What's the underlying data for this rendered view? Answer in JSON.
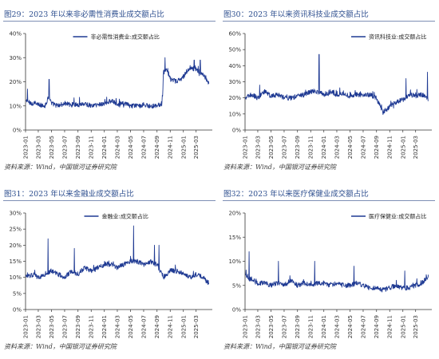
{
  "panels": [
    {
      "figure_title": "图29：2023 年以来非必需性消费业成交额占比",
      "source": "资料来源：Wind，中国银河证券研究院"
    },
    {
      "figure_title": "图30：2023 年以来资讯科技业成交额占比",
      "source": "资料来源：Wind，中国银河证券研究院"
    },
    {
      "figure_title": "图31：2023 年以来金融业成交额占比",
      "source": "资料来源：Wind，中国银河证券研究院"
    },
    {
      "figure_title": "图32：2023 年以来医疗保健业成交额占比",
      "source": "资料来源：Wind，中国银河证券研究院"
    }
  ],
  "colors": {
    "line": "#1f3a93",
    "axis": "#333333",
    "title": "#2e4f8f"
  },
  "chart_data": [
    {
      "type": "line",
      "series": [
        {
          "name": "非必需性消费业:成交额占比",
          "anchors": [
            [
              "2023-01-03",
              12
            ],
            [
              "2023-02-01",
              11
            ],
            [
              "2023-03-01",
              10.5
            ],
            [
              "2023-04-01",
              10
            ],
            [
              "2023-04-20",
              14
            ],
            [
              "2023-05-01",
              11
            ],
            [
              "2023-06-01",
              10
            ],
            [
              "2023-07-01",
              11
            ],
            [
              "2023-08-01",
              10.5
            ],
            [
              "2023-09-01",
              10.5
            ],
            [
              "2023-10-01",
              11
            ],
            [
              "2023-11-01",
              10
            ],
            [
              "2023-12-01",
              10.5
            ],
            [
              "2024-01-01",
              11
            ],
            [
              "2024-02-01",
              12
            ],
            [
              "2024-03-01",
              11
            ],
            [
              "2024-04-01",
              11
            ],
            [
              "2024-05-01",
              10
            ],
            [
              "2024-06-01",
              10
            ],
            [
              "2024-07-01",
              10.5
            ],
            [
              "2024-08-01",
              10
            ],
            [
              "2024-09-01",
              10
            ],
            [
              "2024-09-25",
              11
            ],
            [
              "2024-10-01",
              24
            ],
            [
              "2024-10-20",
              25
            ],
            [
              "2024-11-01",
              21
            ],
            [
              "2024-12-01",
              20
            ],
            [
              "2025-01-01",
              22
            ],
            [
              "2025-02-01",
              26
            ],
            [
              "2025-03-01",
              25
            ],
            [
              "2025-04-01",
              23
            ],
            [
              "2025-04-30",
              19
            ]
          ]
        }
      ],
      "spikes": [
        [
          "2023-01-10",
          17
        ],
        [
          "2023-04-20",
          21
        ],
        [
          "2024-10-08",
          30
        ],
        [
          "2025-02-20",
          29
        ],
        [
          "2025-03-20",
          29
        ]
      ],
      "x_range": [
        "2023-01-01",
        "2025-05-15"
      ],
      "x_ticks": [
        "2023-01",
        "2023-03",
        "2023-05",
        "2023-07",
        "2023-09",
        "2023-11",
        "2024-01",
        "2024-03",
        "2024-05",
        "2024-07",
        "2024-09",
        "2024-11",
        "2025-01",
        "2025-03"
      ],
      "y_ticks": [
        "0%",
        "10%",
        "20%",
        "30%",
        "40%"
      ],
      "ylim": [
        0,
        40
      ],
      "legend_position": "top-center",
      "grid": false
    },
    {
      "type": "line",
      "series": [
        {
          "name": "资讯科技业:成交额占比",
          "anchors": [
            [
              "2023-01-03",
              20
            ],
            [
              "2023-02-01",
              22
            ],
            [
              "2023-03-01",
              20
            ],
            [
              "2023-04-01",
              24
            ],
            [
              "2023-05-01",
              21
            ],
            [
              "2023-06-01",
              22
            ],
            [
              "2023-07-01",
              20
            ],
            [
              "2023-08-01",
              20
            ],
            [
              "2023-09-01",
              21
            ],
            [
              "2023-10-01",
              22
            ],
            [
              "2023-11-01",
              24
            ],
            [
              "2023-12-01",
              24
            ],
            [
              "2024-01-01",
              22
            ],
            [
              "2024-02-01",
              24
            ],
            [
              "2024-03-01",
              22
            ],
            [
              "2024-04-01",
              23
            ],
            [
              "2024-05-01",
              21
            ],
            [
              "2024-06-01",
              22
            ],
            [
              "2024-07-01",
              22
            ],
            [
              "2024-08-01",
              22
            ],
            [
              "2024-09-01",
              20
            ],
            [
              "2024-10-01",
              11
            ],
            [
              "2024-10-20",
              13
            ],
            [
              "2024-11-01",
              15
            ],
            [
              "2024-12-01",
              17
            ],
            [
              "2025-01-01",
              19
            ],
            [
              "2025-02-01",
              22
            ],
            [
              "2025-03-01",
              21
            ],
            [
              "2025-04-01",
              22
            ],
            [
              "2025-04-30",
              19
            ]
          ]
        }
      ],
      "spikes": [
        [
          "2023-03-10",
          28
        ],
        [
          "2023-12-10",
          47
        ],
        [
          "2025-01-15",
          32
        ],
        [
          "2025-04-25",
          36
        ]
      ],
      "x_range": [
        "2023-01-01",
        "2025-05-15"
      ],
      "x_ticks": [
        "2023-01",
        "2023-03",
        "2023-05",
        "2023-07",
        "2023-09",
        "2023-11",
        "2024-01",
        "2024-03",
        "2024-05",
        "2024-07",
        "2024-09",
        "2024-11",
        "2025-01",
        "2025-03"
      ],
      "y_ticks": [
        "0%",
        "10%",
        "20%",
        "30%",
        "40%",
        "50%",
        "60%"
      ],
      "ylim": [
        0,
        60
      ],
      "legend_position": "top-right",
      "grid": false
    },
    {
      "type": "line",
      "series": [
        {
          "name": "金融业:成交额占比",
          "anchors": [
            [
              "2023-01-03",
              10
            ],
            [
              "2023-02-01",
              11
            ],
            [
              "2023-03-01",
              10
            ],
            [
              "2023-04-01",
              11
            ],
            [
              "2023-05-01",
              12
            ],
            [
              "2023-06-01",
              11
            ],
            [
              "2023-07-01",
              10
            ],
            [
              "2023-08-01",
              12
            ],
            [
              "2023-09-01",
              11
            ],
            [
              "2023-10-01",
              13
            ],
            [
              "2023-11-01",
              12
            ],
            [
              "2023-12-01",
              13
            ],
            [
              "2024-01-01",
              14
            ],
            [
              "2024-02-01",
              14
            ],
            [
              "2024-03-01",
              13
            ],
            [
              "2024-04-01",
              14
            ],
            [
              "2024-05-01",
              15
            ],
            [
              "2024-06-01",
              15
            ],
            [
              "2024-07-01",
              14
            ],
            [
              "2024-08-01",
              15
            ],
            [
              "2024-09-01",
              14
            ],
            [
              "2024-10-01",
              10
            ],
            [
              "2024-11-01",
              12
            ],
            [
              "2024-12-01",
              12
            ],
            [
              "2025-01-01",
              11
            ],
            [
              "2025-02-01",
              10
            ],
            [
              "2025-03-01",
              11
            ],
            [
              "2025-04-01",
              10
            ],
            [
              "2025-04-30",
              8
            ]
          ]
        }
      ],
      "spikes": [
        [
          "2023-04-15",
          22
        ],
        [
          "2023-08-15",
          19
        ],
        [
          "2024-05-15",
          26
        ],
        [
          "2024-08-20",
          20
        ],
        [
          "2024-09-10",
          20
        ]
      ],
      "x_range": [
        "2023-01-01",
        "2025-05-15"
      ],
      "x_ticks": [
        "2023-01",
        "2023-03",
        "2023-05",
        "2023-07",
        "2023-09",
        "2023-11",
        "2024-01",
        "2024-03",
        "2024-05",
        "2024-07",
        "2024-09",
        "2024-11",
        "2025-01",
        "2025-03"
      ],
      "y_ticks": [
        "0%",
        "5%",
        "10%",
        "15%",
        "20%",
        "25%",
        "30%"
      ],
      "ylim": [
        0,
        30
      ],
      "legend_position": "top-center",
      "grid": false
    },
    {
      "type": "line",
      "series": [
        {
          "name": "医疗保健业:成交额占比",
          "anchors": [
            [
              "2023-01-03",
              7
            ],
            [
              "2023-02-01",
              6
            ],
            [
              "2023-03-01",
              5.5
            ],
            [
              "2023-04-01",
              5.5
            ],
            [
              "2023-05-01",
              5
            ],
            [
              "2023-06-01",
              5.5
            ],
            [
              "2023-07-01",
              5
            ],
            [
              "2023-08-01",
              6
            ],
            [
              "2023-09-01",
              5
            ],
            [
              "2023-10-01",
              5.5
            ],
            [
              "2023-11-01",
              5
            ],
            [
              "2023-12-01",
              5.5
            ],
            [
              "2024-01-01",
              5.5
            ],
            [
              "2024-02-01",
              5
            ],
            [
              "2024-03-01",
              5.5
            ],
            [
              "2024-04-01",
              5
            ],
            [
              "2024-05-01",
              5
            ],
            [
              "2024-06-01",
              5.5
            ],
            [
              "2024-07-01",
              5
            ],
            [
              "2024-08-01",
              4.5
            ],
            [
              "2024-09-01",
              4.5
            ],
            [
              "2024-10-01",
              4
            ],
            [
              "2024-11-01",
              4.5
            ],
            [
              "2024-12-01",
              5
            ],
            [
              "2025-01-01",
              4.5
            ],
            [
              "2025-02-01",
              4.5
            ],
            [
              "2025-03-01",
              5
            ],
            [
              "2025-04-01",
              5.5
            ],
            [
              "2025-04-30",
              7
            ]
          ]
        }
      ],
      "spikes": [
        [
          "2023-01-20",
          12
        ],
        [
          "2023-06-05",
          10
        ],
        [
          "2023-11-20",
          10
        ],
        [
          "2024-05-20",
          9
        ],
        [
          "2025-01-10",
          8
        ],
        [
          "2025-05-05",
          9
        ]
      ],
      "x_range": [
        "2023-01-01",
        "2025-05-15"
      ],
      "x_ticks": [
        "2023-01",
        "2023-03",
        "2023-05",
        "2023-07",
        "2023-09",
        "2023-11",
        "2024-01",
        "2024-03",
        "2024-05",
        "2024-07",
        "2024-09",
        "2024-11",
        "2025-01",
        "2025-03"
      ],
      "y_ticks": [
        "0%",
        "5%",
        "10%",
        "15%",
        "20%"
      ],
      "ylim": [
        0,
        20
      ],
      "legend_position": "top-right",
      "grid": false
    }
  ]
}
